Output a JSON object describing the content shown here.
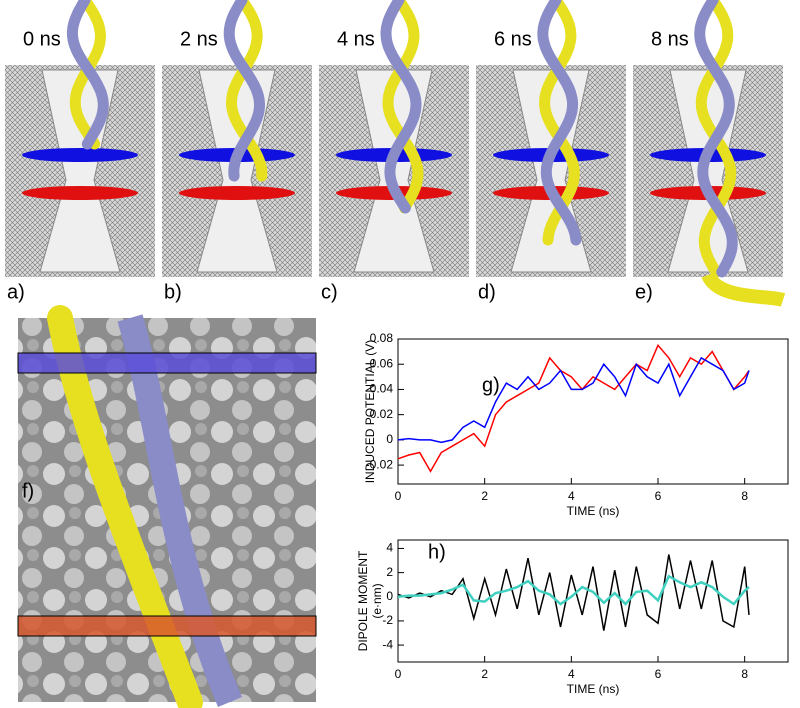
{
  "snapshots": [
    {
      "time": "0 ns",
      "label": "a)"
    },
    {
      "time": "2 ns",
      "label": "b)"
    },
    {
      "time": "4 ns",
      "label": "c)"
    },
    {
      "time": "6 ns",
      "label": "d)"
    },
    {
      "time": "8 ns",
      "label": "e)"
    }
  ],
  "panel_f": {
    "label": "f)"
  },
  "chart_data": [
    {
      "type": "line",
      "label": "g)",
      "xlabel": "TIME (ns)",
      "ylabel": [
        "INDUCED POTENTIAL (V)"
      ],
      "xlim": [
        0,
        9
      ],
      "xticks": [
        0,
        2,
        4,
        6,
        8
      ],
      "ylim": [
        -0.035,
        0.08
      ],
      "yticks": [
        -0.02,
        0,
        0.02,
        0.04,
        0.06,
        0.08
      ],
      "x": [
        0,
        0.25,
        0.5,
        0.75,
        1,
        1.25,
        1.5,
        1.75,
        2,
        2.25,
        2.5,
        2.75,
        3,
        3.25,
        3.5,
        3.75,
        4,
        4.25,
        4.5,
        4.75,
        5,
        5.25,
        5.5,
        5.75,
        6,
        6.25,
        6.5,
        6.75,
        7,
        7.25,
        7.5,
        7.75,
        8,
        8.1
      ],
      "series": [
        {
          "color": "#ff0000",
          "values": [
            -0.015,
            -0.012,
            -0.01,
            -0.025,
            -0.01,
            -0.005,
            0,
            0.005,
            -0.005,
            0.02,
            0.03,
            0.035,
            0.04,
            0.045,
            0.065,
            0.055,
            0.05,
            0.04,
            0.05,
            0.045,
            0.04,
            0.05,
            0.06,
            0.055,
            0.075,
            0.065,
            0.05,
            0.065,
            0.06,
            0.07,
            0.055,
            0.04,
            0.05,
            0.055
          ]
        },
        {
          "color": "#0000ff",
          "values": [
            0,
            0.001,
            0,
            0,
            -0.002,
            0,
            0.01,
            0.015,
            0.01,
            0.03,
            0.045,
            0.04,
            0.05,
            0.04,
            0.045,
            0.055,
            0.04,
            0.04,
            0.045,
            0.06,
            0.05,
            0.035,
            0.06,
            0.05,
            0.045,
            0.06,
            0.035,
            0.05,
            0.065,
            0.06,
            0.055,
            0.04,
            0.045,
            0.055
          ]
        }
      ]
    },
    {
      "type": "line",
      "label": "h)",
      "xlabel": "TIME (ns)",
      "ylabel": [
        "DIPOLE MOMENT",
        "(e·nm)"
      ],
      "xlim": [
        0,
        9
      ],
      "xticks": [
        0,
        2,
        4,
        6,
        8
      ],
      "ylim": [
        -5.4,
        4.7
      ],
      "yticks": [
        -4,
        -2,
        0,
        2,
        4
      ],
      "x": [
        0,
        0.25,
        0.5,
        0.75,
        1,
        1.25,
        1.5,
        1.75,
        2,
        2.25,
        2.5,
        2.75,
        3,
        3.25,
        3.5,
        3.75,
        4,
        4.25,
        4.5,
        4.75,
        5,
        5.25,
        5.5,
        5.75,
        6,
        6.25,
        6.5,
        6.75,
        7,
        7.25,
        7.5,
        7.75,
        8,
        8.1
      ],
      "series": [
        {
          "color": "#000000",
          "values": [
            0.2,
            -0.1,
            0.3,
            0,
            0.5,
            0.2,
            1.5,
            -1.8,
            1.5,
            -1.5,
            2.3,
            -1,
            3.2,
            -1.5,
            2,
            -2.5,
            1.8,
            -1.5,
            2.5,
            -2.8,
            2.2,
            -2.5,
            2.5,
            -1.5,
            -2.2,
            3.5,
            -1,
            3,
            -1,
            3,
            -2,
            -2.5,
            2.5,
            -1.5
          ]
        },
        {
          "color": "#40d0c0",
          "values": [
            0,
            0.1,
            0.1,
            0.2,
            0.3,
            0.6,
            1,
            -0.3,
            -0.4,
            0.3,
            0.5,
            0.8,
            1.3,
            0.5,
            0.2,
            -0.6,
            0,
            0.8,
            0.4,
            -0.5,
            0.3,
            -0.6,
            0.4,
            0.5,
            -0.3,
            1.7,
            1.2,
            0.8,
            1.2,
            0.8,
            0,
            -0.6,
            0.5,
            0.8
          ]
        }
      ]
    }
  ]
}
